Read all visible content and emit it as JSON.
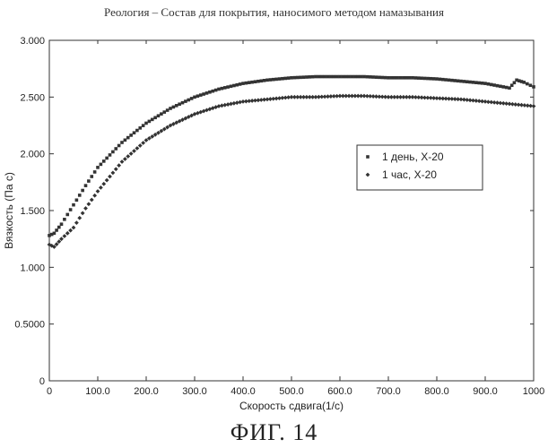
{
  "figure_caption": "ФИГ. 14",
  "chart_data": {
    "type": "scatter",
    "title": "Реология – Состав для покрытия, наносимого методом намазывания",
    "xlabel": "Скорость сдвига(1/с)",
    "ylabel": "Вязкость (Па с)",
    "xlim": [
      0,
      1000
    ],
    "ylim": [
      0,
      3.0
    ],
    "x_ticks": [
      0,
      100,
      200,
      300,
      400,
      500,
      600,
      700,
      800,
      900,
      1000
    ],
    "x_tick_labels": [
      "0",
      "100.0",
      "200.0",
      "300.0",
      "400.0",
      "500.0",
      "600.0",
      "700.0",
      "800.0",
      "900.0",
      "1000"
    ],
    "y_ticks": [
      0,
      0.5,
      1.0,
      1.5,
      2.0,
      2.5,
      3.0
    ],
    "y_tick_labels": [
      "0",
      "0.5000",
      "1.000",
      "1.500",
      "2.000",
      "2.500",
      "3.000"
    ],
    "legend_position": "right",
    "series": [
      {
        "name": "1 день, Х-20",
        "marker": "■",
        "x": [
          0,
          10,
          25,
          50,
          75,
          100,
          150,
          200,
          250,
          300,
          350,
          400,
          450,
          500,
          550,
          600,
          650,
          700,
          750,
          800,
          850,
          900,
          950,
          965,
          980,
          1000
        ],
        "y": [
          1.28,
          1.3,
          1.38,
          1.55,
          1.72,
          1.88,
          2.1,
          2.27,
          2.4,
          2.5,
          2.57,
          2.62,
          2.65,
          2.67,
          2.68,
          2.68,
          2.68,
          2.67,
          2.67,
          2.66,
          2.64,
          2.62,
          2.58,
          2.65,
          2.63,
          2.59
        ]
      },
      {
        "name": "1 час, Х-20",
        "marker": "◆",
        "x": [
          0,
          10,
          25,
          50,
          75,
          100,
          150,
          200,
          250,
          300,
          350,
          400,
          450,
          500,
          550,
          600,
          650,
          700,
          750,
          800,
          850,
          900,
          950,
          1000
        ],
        "y": [
          1.2,
          1.18,
          1.25,
          1.35,
          1.52,
          1.67,
          1.93,
          2.12,
          2.25,
          2.35,
          2.42,
          2.46,
          2.48,
          2.5,
          2.5,
          2.51,
          2.51,
          2.5,
          2.5,
          2.49,
          2.48,
          2.46,
          2.44,
          2.42
        ]
      }
    ]
  }
}
